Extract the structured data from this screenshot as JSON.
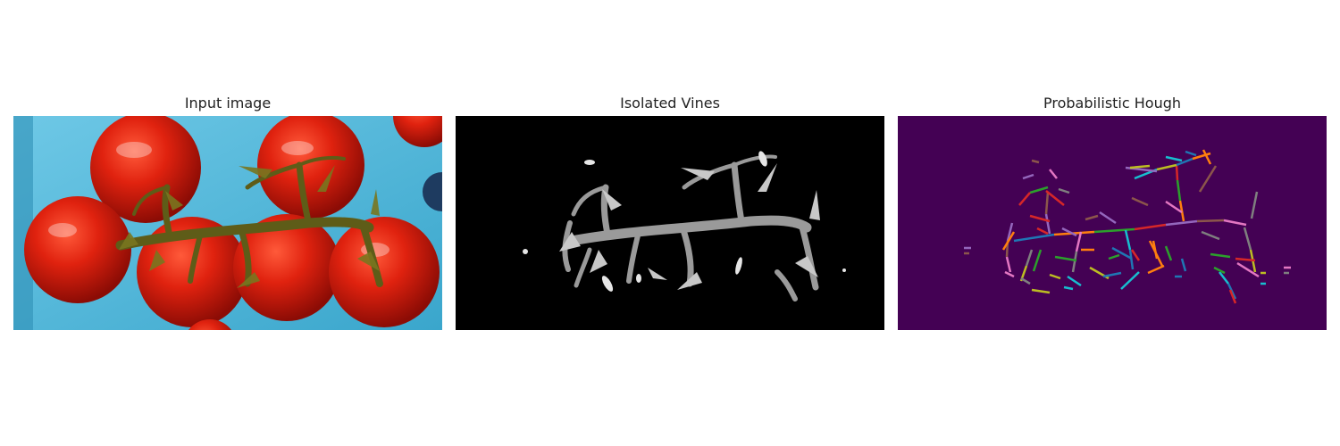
{
  "figure": {
    "panels": [
      {
        "title": "Input image",
        "content": "tomato-vine-photo"
      },
      {
        "title": "Isolated Vines",
        "content": "vine-mask"
      },
      {
        "title": "Probabilistic Hough",
        "content": "hough-line-segments"
      }
    ]
  },
  "colors": {
    "background_blue": "#4fb6d6",
    "tomato_red": "#d7190f",
    "vine_olive": "#6e6b1e",
    "mask_black": "#000000",
    "hough_bg": "#440154",
    "segment_palette": [
      "#1f77b4",
      "#ff7f0e",
      "#2ca02c",
      "#d62728",
      "#9467bd",
      "#8c564b",
      "#e377c2",
      "#7f7f7f",
      "#bcbd22",
      "#17becf"
    ]
  }
}
